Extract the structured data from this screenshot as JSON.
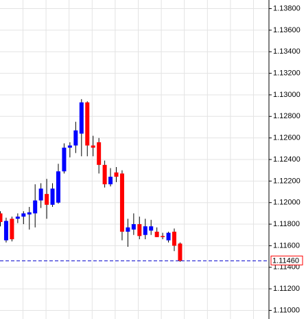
{
  "chart_data": {
    "type": "candlestick",
    "series": [
      {
        "name": "open",
        "values": [
          1.119,
          1.1165,
          1.1185,
          1.1185,
          1.1187,
          1.1189,
          1.119,
          1.1202,
          1.1208,
          1.1198,
          1.12,
          1.1229,
          1.1251,
          1.1253,
          1.1264,
          1.1293,
          1.1253,
          1.1256,
          1.1235,
          1.1217,
          1.1228,
          1.1227,
          1.1173,
          1.1175,
          1.118,
          1.117,
          1.1174,
          1.1173,
          1.1169,
          1.1165,
          1.1173,
          1.1162
        ]
      },
      {
        "name": "high",
        "values": [
          1.1192,
          1.1186,
          1.1187,
          1.119,
          1.1192,
          1.1196,
          1.1217,
          1.1218,
          1.1222,
          1.1218,
          1.1236,
          1.1255,
          1.1256,
          1.1275,
          1.1296,
          1.1294,
          1.1262,
          1.126,
          1.1239,
          1.1232,
          1.1233,
          1.123,
          1.1185,
          1.119,
          1.1187,
          1.1185,
          1.1184,
          1.1177,
          1.1172,
          1.1173,
          1.1176,
          1.1163
        ]
      },
      {
        "name": "low",
        "values": [
          1.1178,
          1.1163,
          1.1164,
          1.1181,
          1.118,
          1.1175,
          1.1177,
          1.1195,
          1.1185,
          1.1196,
          1.1199,
          1.1227,
          1.1242,
          1.1246,
          1.1243,
          1.1243,
          1.1243,
          1.1227,
          1.1214,
          1.1215,
          1.1219,
          1.1165,
          1.1159,
          1.117,
          1.1166,
          1.1166,
          1.117,
          1.1168,
          1.1166,
          1.1163,
          1.1155,
          1.1145
        ]
      },
      {
        "name": "close",
        "values": [
          1.1182,
          1.1183,
          1.1166,
          1.1187,
          1.119,
          1.1191,
          1.1202,
          1.1213,
          1.1198,
          1.1213,
          1.1229,
          1.1251,
          1.1253,
          1.1267,
          1.1293,
          1.1253,
          1.1251,
          1.1235,
          1.1217,
          1.1224,
          1.1224,
          1.1173,
          1.1177,
          1.118,
          1.1169,
          1.1178,
          1.1178,
          1.1168,
          1.1168,
          1.1172,
          1.116,
          1.1146
        ]
      }
    ],
    "up_color": "#0000ff",
    "down_color": "#ff0000",
    "ylim": [
      1.1092,
      1.1388
    ],
    "yticks": [
      {
        "value": 1.138,
        "label": "1.13800"
      },
      {
        "value": 1.136,
        "label": "1.13600"
      },
      {
        "value": 1.134,
        "label": "1.13400"
      },
      {
        "value": 1.132,
        "label": "1.13200"
      },
      {
        "value": 1.13,
        "label": "1.13000"
      },
      {
        "value": 1.128,
        "label": "1.12800"
      },
      {
        "value": 1.126,
        "label": "1.12600"
      },
      {
        "value": 1.124,
        "label": "1.12400"
      },
      {
        "value": 1.122,
        "label": "1.12200"
      },
      {
        "value": 1.12,
        "label": "1.12000"
      },
      {
        "value": 1.118,
        "label": "1.11800"
      },
      {
        "value": 1.116,
        "label": "1.11600"
      },
      {
        "value": 1.114,
        "label": "1.11400"
      },
      {
        "value": 1.112,
        "label": "1.11200"
      },
      {
        "value": 1.11,
        "label": "1.11000"
      }
    ],
    "last_price": {
      "value": 1.1146,
      "label": "1.11460"
    },
    "grid": true
  }
}
